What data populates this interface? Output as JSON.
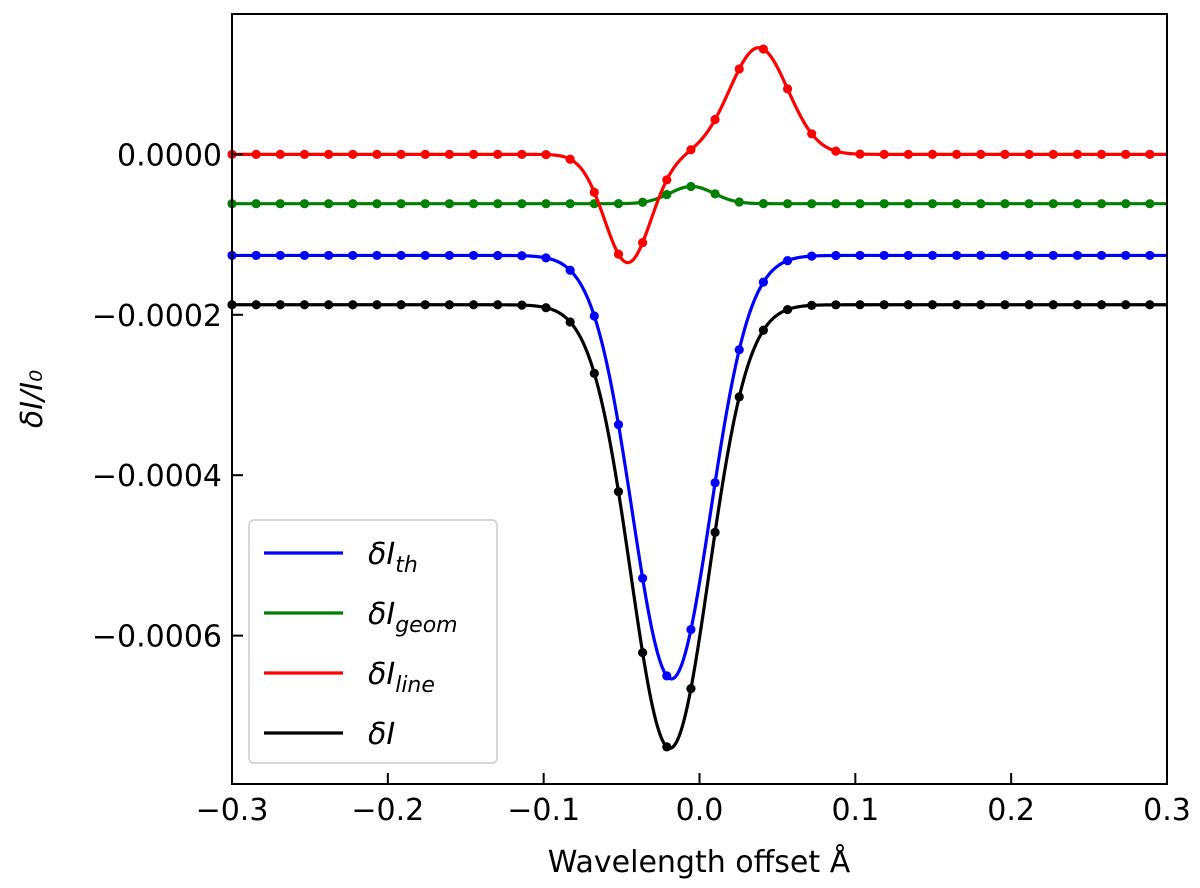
{
  "chart_data": {
    "type": "line",
    "xlabel": "Wavelength offset Å",
    "ylabel": "δI/I₀",
    "xlim": [
      -0.3,
      0.3
    ],
    "ylim": [
      -0.000785,
      0.000175
    ],
    "x_ticks": [
      -0.3,
      -0.2,
      -0.1,
      0.0,
      0.1,
      0.2,
      0.3
    ],
    "x_tick_labels": [
      "−0.3",
      "−0.2",
      "−0.1",
      "0.0",
      "0.1",
      "0.2",
      "0.3"
    ],
    "y_ticks": [
      0.0,
      -0.0002,
      -0.0004,
      -0.0006
    ],
    "y_tick_labels": [
      "0.0000",
      "−0.0002",
      "−0.0004",
      "−0.0006"
    ],
    "legend_position": "lower-left",
    "series": [
      {
        "name": "δI_th",
        "legend_main": "δI",
        "legend_sub": "th",
        "color": "#0000ff",
        "profile": {
          "base": -0.000126,
          "g1": [
            -0.000528,
            -0.018,
            0.0355
          ],
          "g2": [
            0,
            0,
            1
          ]
        }
      },
      {
        "name": "δI_geom",
        "legend_main": "δI",
        "legend_sub": "geom",
        "color": "#007f00",
        "profile": {
          "base": -6.15e-05,
          "g1": [
            2.15e-05,
            -0.005,
            0.02
          ],
          "g2": [
            0,
            0,
            1
          ]
        }
      },
      {
        "name": "δI_line",
        "legend_main": "δI",
        "legend_sub": "line",
        "color": "#ff0000",
        "profile": {
          "base": 0.0,
          "g1": [
            -0.000135,
            -0.046,
            0.021
          ],
          "g2": [
            0.000133,
            0.038,
            0.0265
          ]
        }
      },
      {
        "name": "δI",
        "legend_main": "δI",
        "legend_sub": "",
        "color": "#000000",
        "profile": {
          "base": -0.0001875,
          "g1": [
            -0.000553,
            -0.019,
            0.0355
          ],
          "g2": [
            0,
            0,
            1
          ]
        }
      }
    ],
    "marker_x_step": 0.0155
  }
}
